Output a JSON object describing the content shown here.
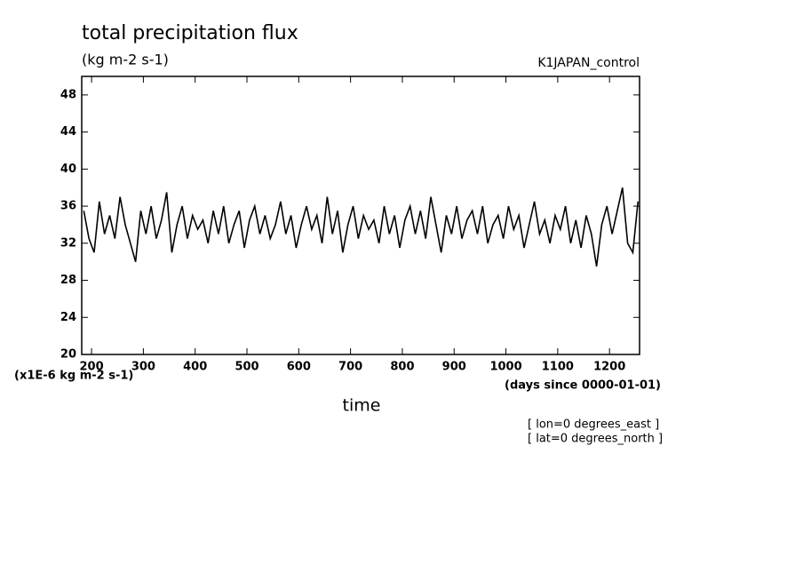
{
  "chart_data": {
    "type": "line",
    "title": "total precipitation flux",
    "subtitle": "(kg m-2 s-1)",
    "run_label": "K1JAPAN_control",
    "y_axis_label": "(x1E-6 kg m-2 s-1)",
    "x_axis_units": "(days since 0000-01-01)",
    "x_axis_label": "time",
    "annotations": [
      "[ lon=0 degrees_east ]",
      "[ lat=0 degrees_north ]"
    ],
    "x": [
      185,
      195,
      205,
      215,
      225,
      235,
      245,
      255,
      265,
      275,
      285,
      295,
      305,
      315,
      325,
      335,
      345,
      355,
      365,
      375,
      385,
      395,
      405,
      415,
      425,
      435,
      445,
      455,
      465,
      475,
      485,
      495,
      505,
      515,
      525,
      535,
      545,
      555,
      565,
      575,
      585,
      595,
      605,
      615,
      625,
      635,
      645,
      655,
      665,
      675,
      685,
      695,
      705,
      715,
      725,
      735,
      745,
      755,
      765,
      775,
      785,
      795,
      805,
      815,
      825,
      835,
      845,
      855,
      865,
      875,
      885,
      895,
      905,
      915,
      925,
      935,
      945,
      955,
      965,
      975,
      985,
      995,
      1005,
      1015,
      1025,
      1035,
      1045,
      1055,
      1065,
      1075,
      1085,
      1095,
      1105,
      1115,
      1125,
      1135,
      1145,
      1155,
      1165,
      1175,
      1185,
      1195,
      1205,
      1215,
      1225,
      1235,
      1245,
      1255
    ],
    "series": [
      {
        "name": "precipitation",
        "color": "#000000",
        "values": [
          35.5,
          32.5,
          31,
          36.5,
          33,
          35,
          32.5,
          37,
          34,
          32,
          30,
          35.5,
          33,
          36,
          32.5,
          34.5,
          37.5,
          31,
          34,
          36,
          32.5,
          35,
          33.5,
          34.5,
          32,
          35.5,
          33,
          36,
          32,
          34,
          35.5,
          31.5,
          34.5,
          36,
          33,
          35,
          32.5,
          34,
          36.5,
          33,
          35,
          31.5,
          34,
          36,
          33.5,
          35,
          32,
          37,
          33,
          35.5,
          31,
          34,
          36,
          32.5,
          35,
          33.5,
          34.5,
          32,
          36,
          33,
          35,
          31.5,
          34.5,
          36,
          33,
          35.5,
          32.5,
          37,
          34,
          31,
          35,
          33,
          36,
          32.5,
          34.5,
          35.5,
          33,
          36,
          32,
          34,
          35,
          32.5,
          36,
          33.5,
          35,
          31.5,
          34,
          36.5,
          33,
          34.5,
          32,
          35,
          33.5,
          36,
          32,
          34.5,
          31.5,
          35,
          33,
          29.5,
          34,
          36,
          33,
          35.5,
          38,
          32,
          31,
          36.5
        ]
      }
    ],
    "xlim": [
      181,
      1258
    ],
    "ylim": [
      20,
      50
    ],
    "xticks": [
      200,
      300,
      400,
      500,
      600,
      700,
      800,
      900,
      1000,
      1100,
      1200
    ],
    "yticks": [
      20,
      24,
      28,
      32,
      36,
      40,
      44,
      48
    ]
  }
}
